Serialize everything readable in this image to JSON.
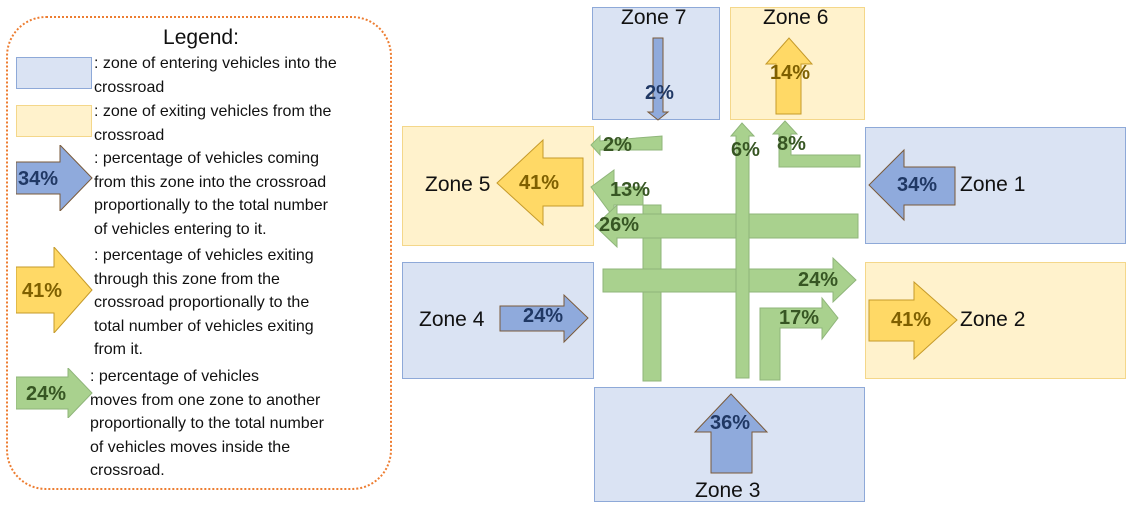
{
  "legend": {
    "title": "Legend:",
    "entries": [
      {
        "text": [
          ": zone of entering vehicles into the",
          "crossroad"
        ]
      },
      {
        "text": [
          ": zone of exiting vehicles from the",
          "crossroad"
        ]
      },
      {
        "value": "34%",
        "text": [
          ": percentage of vehicles coming",
          "from this zone into the crossroad",
          "proportionally to the total number",
          "of vehicles entering to it."
        ]
      },
      {
        "value": "41%",
        "text": [
          ": percentage of vehicles exiting",
          "through this zone from the",
          "crossroad proportionally to the",
          "total number of vehicles exiting",
          "from it."
        ]
      },
      {
        "value": "24%",
        "text": [
          ": percentage of vehicles",
          "moves from one zone to another",
          "proportionally to the total number",
          "of vehicles moves inside the",
          "crossroad."
        ]
      }
    ]
  },
  "zones": {
    "zone1": {
      "label": "Zone 1",
      "type": "entering",
      "value": "34%"
    },
    "zone2": {
      "label": "Zone 2",
      "type": "exiting",
      "value": "41%"
    },
    "zone3": {
      "label": "Zone 3",
      "type": "entering",
      "value": "36%"
    },
    "zone4": {
      "label": "Zone 4",
      "type": "entering",
      "value": "24%"
    },
    "zone5": {
      "label": "Zone 5",
      "type": "exiting",
      "value": "41%"
    },
    "zone6": {
      "label": "Zone 6",
      "type": "exiting",
      "value": "14%"
    },
    "zone7": {
      "label": "Zone 7",
      "type": "entering",
      "value": "2%"
    }
  },
  "flows": {
    "zone7_to_zone5": "2%",
    "zone3_to_zone5": "13%",
    "zone1_to_zone5": "26%",
    "zone3_to_zone6": "6%",
    "zone1_to_zone6": "8%",
    "zone4_to_zone2": "24%",
    "zone3_to_zone2": "17%"
  },
  "colors": {
    "entering_fill": "#dae3f3",
    "exiting_fill": "#fff2cc",
    "blue_arrow": "#8faadc",
    "yellow_arrow": "#ffd966",
    "green_arrow": "#a9d18e",
    "legend_border": "#ed7d31"
  }
}
